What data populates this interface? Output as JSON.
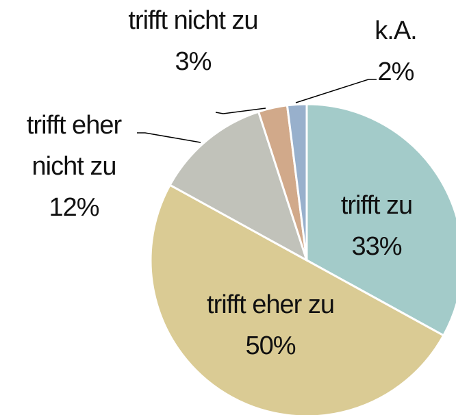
{
  "chart_data": {
    "type": "pie",
    "categories": [
      "trifft zu",
      "trifft eher zu",
      "trifft eher nicht zu",
      "trifft nicht zu",
      "k.A."
    ],
    "values": [
      33,
      50,
      12,
      3,
      2
    ],
    "value_labels": [
      "33%",
      "50%",
      "12%",
      "3%",
      "2%"
    ],
    "colors": [
      "#a3cbc9",
      "#dacb94",
      "#c1c2ba",
      "#d1a98a",
      "#98b0cc"
    ]
  }
}
